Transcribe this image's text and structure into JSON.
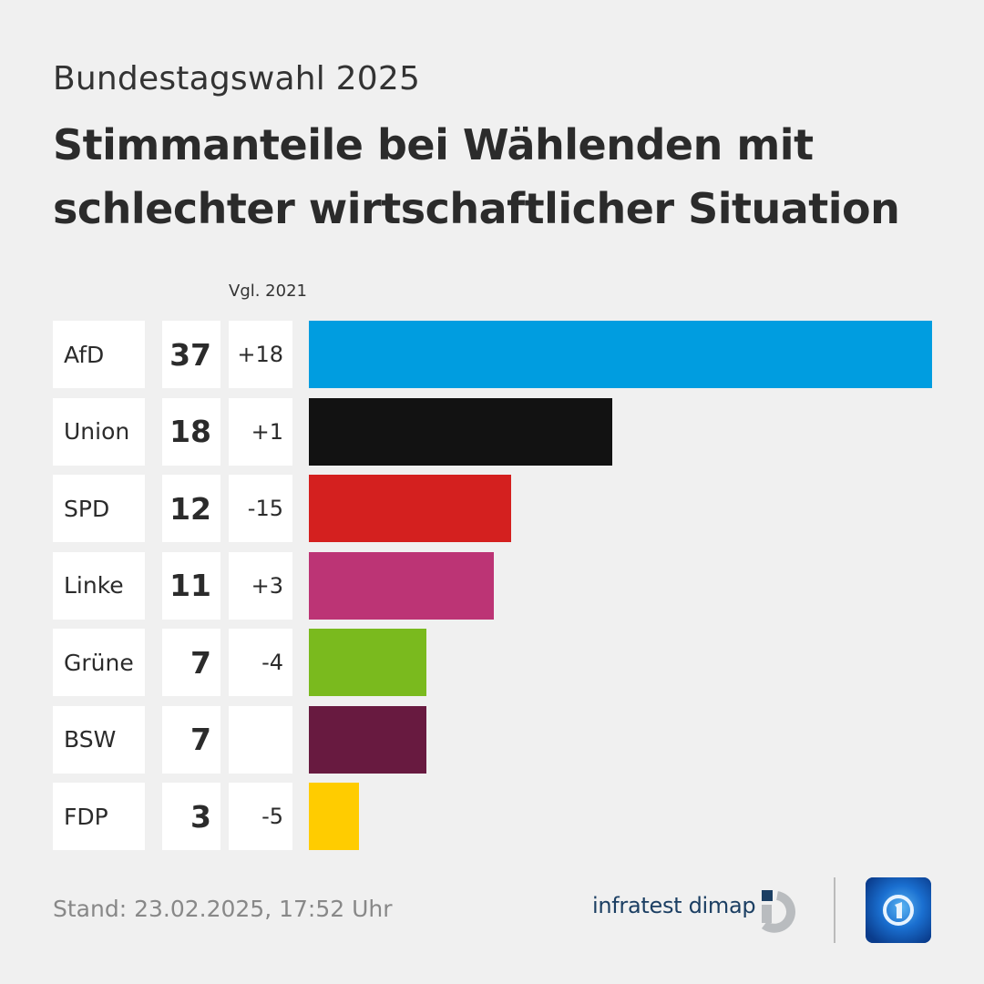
{
  "header": {
    "subtitle": "Bundestagswahl 2025",
    "title": "Stimmanteile bei Wählenden mit schlechter wirtschaftlicher Situation"
  },
  "columns": {
    "compare_label": "Vgl. 2021"
  },
  "chart_data": {
    "type": "bar",
    "orientation": "horizontal",
    "title": "Stimmanteile bei Wählenden mit schlechter wirtschaftlicher Situation",
    "subtitle": "Bundestagswahl 2025",
    "unit": "%",
    "categories": [
      "AfD",
      "Union",
      "SPD",
      "Linke",
      "Grüne",
      "BSW",
      "FDP"
    ],
    "values": [
      37,
      18,
      12,
      11,
      7,
      7,
      3
    ],
    "diff_label": "Vgl. 2021",
    "diffs": [
      "+18",
      "+1",
      "-15",
      "+3",
      "-4",
      "",
      "-5"
    ],
    "colors": [
      "#009de0",
      "#121212",
      "#d4201f",
      "#bc3475",
      "#7aba1e",
      "#681a40",
      "#ffcc00"
    ],
    "xlim": [
      0,
      37
    ],
    "grid": false,
    "legend": "none"
  },
  "footer": {
    "stand": "Stand:  23.02.2025, 17:52 Uhr",
    "source": "infratest dimap",
    "source_logo_icon": "infratest-dimap-logo-icon",
    "broadcaster_logo_icon": "tagesschau-logo-icon"
  }
}
